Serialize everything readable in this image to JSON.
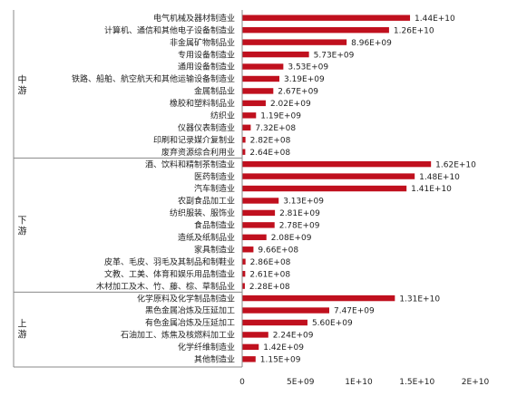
{
  "chart_data": {
    "type": "bar",
    "orientation": "horizontal",
    "bar_color": "#C0101E",
    "xlim": [
      0,
      20000000000.0
    ],
    "x_ticks": [
      {
        "value": 0,
        "label": "0"
      },
      {
        "value": 5000000000.0,
        "label": "5E+09"
      },
      {
        "value": 10000000000.0,
        "label": "1E+10"
      },
      {
        "value": 15000000000.0,
        "label": "1.5E+10"
      },
      {
        "value": 20000000000.0,
        "label": "2E+10"
      }
    ],
    "groups": [
      {
        "name": "中游",
        "display": "中\n游",
        "items": [
          {
            "category": "电气机械及器材制造业",
            "value": 14400000000.0,
            "label": "1.44E+10"
          },
          {
            "category": "计算机、通信和其他电子设备制造业",
            "value": 12600000000.0,
            "label": "1.26E+10"
          },
          {
            "category": "非金属矿物制品业",
            "value": 8960000000.0,
            "label": "8.96E+09"
          },
          {
            "category": "专用设备制造业",
            "value": 5730000000.0,
            "label": "5.73E+09"
          },
          {
            "category": "通用设备制造业",
            "value": 3530000000.0,
            "label": "3.53E+09"
          },
          {
            "category": "铁路、船舶、航空航天和其他运输设备制造业",
            "value": 3190000000.0,
            "label": "3.19E+09"
          },
          {
            "category": "金属制品业",
            "value": 2670000000.0,
            "label": "2.67E+09"
          },
          {
            "category": "橡胶和塑料制品业",
            "value": 2020000000.0,
            "label": "2.02E+09"
          },
          {
            "category": "纺织业",
            "value": 1190000000.0,
            "label": "1.19E+09"
          },
          {
            "category": "仪器仪表制造业",
            "value": 732000000.0,
            "label": "7.32E+08"
          },
          {
            "category": "印刷和记录媒介复制业",
            "value": 282000000.0,
            "label": "2.82E+08"
          },
          {
            "category": "废弃资源综合利用业",
            "value": 264000000.0,
            "label": "2.64E+08"
          }
        ]
      },
      {
        "name": "下游",
        "display": "下\n游",
        "items": [
          {
            "category": "酒、饮料和精制茶制造业",
            "value": 16200000000.0,
            "label": "1.62E+10"
          },
          {
            "category": "医药制造业",
            "value": 14800000000.0,
            "label": "1.48E+10"
          },
          {
            "category": "汽车制造业",
            "value": 14100000000.0,
            "label": "1.41E+10"
          },
          {
            "category": "农副食品加工业",
            "value": 3130000000.0,
            "label": "3.13E+09"
          },
          {
            "category": "纺织服装、服饰业",
            "value": 2810000000.0,
            "label": "2.81E+09"
          },
          {
            "category": "食品制造业",
            "value": 2780000000.0,
            "label": "2.78E+09"
          },
          {
            "category": "造纸及纸制品业",
            "value": 2080000000.0,
            "label": "2.08E+09"
          },
          {
            "category": "家具制造业",
            "value": 966000000.0,
            "label": "9.66E+08"
          },
          {
            "category": "皮革、毛皮、羽毛及其制品和制鞋业",
            "value": 286000000.0,
            "label": "2.86E+08"
          },
          {
            "category": "文教、工美、体育和娱乐用品制造业",
            "value": 261000000.0,
            "label": "2.61E+08"
          },
          {
            "category": "木材加工及木、竹、藤、棕、草制品业",
            "value": 228000000.0,
            "label": "2.28E+08"
          }
        ]
      },
      {
        "name": "上游",
        "display": "上\n游",
        "items": [
          {
            "category": "化学原料及化学制品制造业",
            "value": 13100000000.0,
            "label": "1.31E+10"
          },
          {
            "category": "黑色金属冶炼及压延加工",
            "value": 7470000000.0,
            "label": "7.47E+09"
          },
          {
            "category": "有色金属冶炼及压延加工",
            "value": 5600000000.0,
            "label": "5.60E+09"
          },
          {
            "category": "石油加工、炼焦及核燃料加工业",
            "value": 2240000000.0,
            "label": "2.24E+09"
          },
          {
            "category": "化学纤维制造业",
            "value": 1420000000.0,
            "label": "1.42E+09"
          },
          {
            "category": "其他制造业",
            "value": 1150000000.0,
            "label": "1.15E+09"
          }
        ]
      }
    ]
  }
}
